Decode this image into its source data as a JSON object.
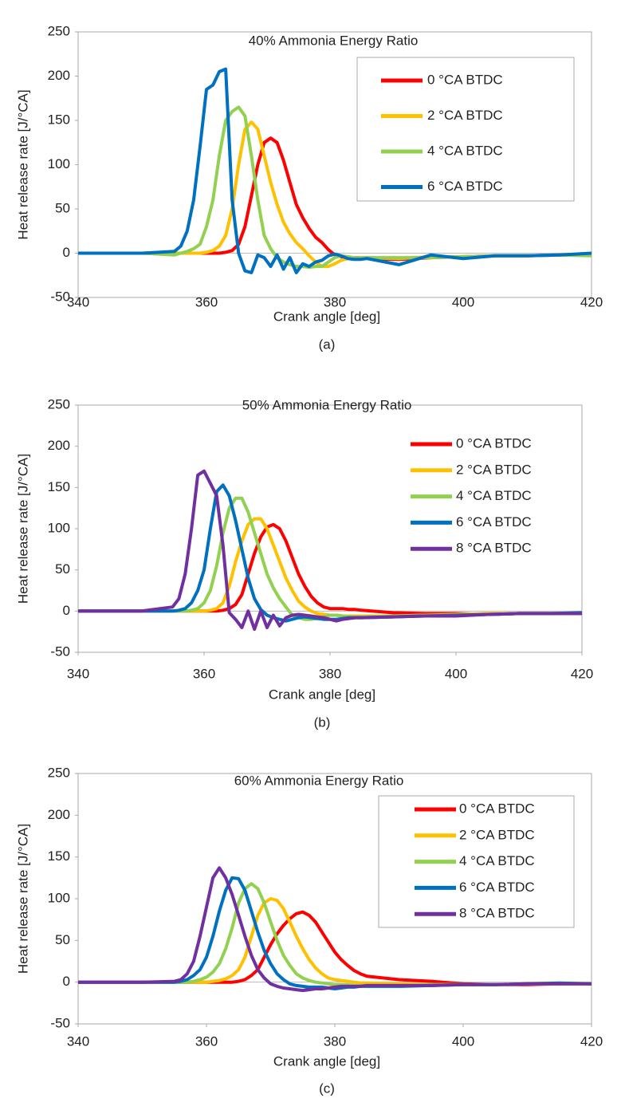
{
  "chart_data": [
    {
      "type": "line",
      "title": "40% Ammonia Energy Ratio",
      "xlabel": "Crank angle [deg]",
      "ylabel": "Heat release rate [J/°CA]",
      "caption": "(a)",
      "xlim": [
        340,
        420
      ],
      "xticks": [
        340,
        360,
        380,
        400,
        420
      ],
      "ylim": [
        -50,
        250
      ],
      "yticks": [
        -50,
        0,
        50,
        100,
        150,
        200,
        250
      ],
      "legend": "upper right",
      "legend_frame": true,
      "x": [
        340,
        345,
        350,
        355,
        356,
        357,
        358,
        359,
        360,
        361,
        362,
        363,
        364,
        365,
        366,
        367,
        368,
        369,
        370,
        371,
        372,
        373,
        374,
        375,
        376,
        377,
        378,
        379,
        380,
        381,
        382,
        383,
        384,
        385,
        390,
        395,
        400,
        405,
        410,
        415,
        420
      ],
      "series": [
        {
          "name": "0 °CA BTDC",
          "color": "#ff0000",
          "values": [
            0,
            0,
            0,
            0,
            0,
            0,
            0,
            0,
            0,
            0,
            0,
            1,
            3,
            10,
            30,
            65,
            100,
            125,
            130,
            125,
            105,
            80,
            55,
            40,
            28,
            18,
            12,
            4,
            -2,
            -4,
            -5,
            -5,
            -5,
            -6,
            -7,
            -5,
            -4,
            -3,
            -3,
            -2,
            -2
          ]
        },
        {
          "name": "2 °CA BTDC",
          "color": "#ffc000",
          "values": [
            0,
            0,
            0,
            0,
            0,
            0,
            0,
            0,
            1,
            3,
            8,
            20,
            50,
            100,
            140,
            148,
            140,
            110,
            80,
            55,
            35,
            22,
            12,
            5,
            -3,
            -10,
            -15,
            -15,
            -12,
            -8,
            -6,
            -6,
            -5,
            -5,
            -6,
            -4,
            -4,
            -3,
            -3,
            -2,
            -2
          ]
        },
        {
          "name": "4 °CA BTDC",
          "color": "#92d050",
          "values": [
            0,
            0,
            0,
            -2,
            0,
            2,
            5,
            10,
            30,
            60,
            110,
            150,
            160,
            165,
            155,
            110,
            60,
            20,
            5,
            -5,
            -10,
            -13,
            -15,
            -15,
            -16,
            -15,
            -15,
            -10,
            -5,
            -3,
            -4,
            -5,
            -5,
            -5,
            -5,
            -5,
            -4,
            -3,
            -3,
            -2,
            -3
          ]
        },
        {
          "name": "6 °CA BTDC",
          "color": "#0070c0",
          "values": [
            0,
            0,
            0,
            2,
            8,
            25,
            60,
            120,
            185,
            190,
            205,
            208,
            60,
            0,
            -20,
            -22,
            -2,
            -5,
            -15,
            -2,
            -18,
            -5,
            -22,
            -12,
            -15,
            -10,
            -8,
            -3,
            -1,
            -3,
            -6,
            -7,
            -7,
            -6,
            -13,
            -2,
            -6,
            -3,
            -3,
            -2,
            0
          ]
        }
      ]
    },
    {
      "type": "line",
      "title": "50% Ammonia Energy Ratio",
      "xlabel": "Crank angle [deg]",
      "ylabel": "Heat release rate [J/°CA]",
      "caption": "(b)",
      "xlim": [
        340,
        420
      ],
      "xticks": [
        340,
        360,
        380,
        400,
        420
      ],
      "ylim": [
        -50,
        250
      ],
      "yticks": [
        -50,
        0,
        50,
        100,
        150,
        200,
        250
      ],
      "legend": "upper right",
      "legend_frame": false,
      "x": [
        340,
        345,
        350,
        355,
        356,
        357,
        358,
        359,
        360,
        361,
        362,
        363,
        364,
        365,
        366,
        367,
        368,
        369,
        370,
        371,
        372,
        373,
        374,
        375,
        376,
        377,
        378,
        379,
        380,
        381,
        382,
        383,
        384,
        385,
        390,
        395,
        400,
        405,
        410,
        415,
        420
      ],
      "series": [
        {
          "name": "0 °CA BTDC",
          "color": "#ff0000",
          "values": [
            0,
            0,
            0,
            0,
            0,
            0,
            0,
            0,
            0,
            0,
            0,
            1,
            3,
            8,
            20,
            45,
            70,
            90,
            102,
            105,
            100,
            85,
            65,
            45,
            30,
            18,
            10,
            5,
            3,
            3,
            3,
            2,
            2,
            1,
            -2,
            -3,
            -3,
            -4,
            -3,
            -3,
            -3
          ]
        },
        {
          "name": "2 °CA BTDC",
          "color": "#ffc000",
          "values": [
            0,
            0,
            0,
            0,
            0,
            0,
            0,
            0,
            0,
            1,
            3,
            10,
            30,
            60,
            85,
            105,
            112,
            112,
            100,
            80,
            60,
            40,
            25,
            12,
            5,
            0,
            -3,
            -4,
            -5,
            -5,
            -6,
            -6,
            -6,
            -6,
            -6,
            -5,
            -4,
            -3,
            -3,
            -3,
            -3
          ]
        },
        {
          "name": "4 °CA BTDC",
          "color": "#92d050",
          "values": [
            0,
            0,
            0,
            0,
            0,
            0,
            1,
            3,
            10,
            25,
            55,
            95,
            125,
            137,
            137,
            120,
            95,
            70,
            45,
            28,
            15,
            5,
            -5,
            -8,
            -10,
            -10,
            -9,
            -7,
            -5,
            -5,
            -6,
            -7,
            -7,
            -7,
            -6,
            -5,
            -5,
            -4,
            -3,
            -3,
            -3
          ]
        },
        {
          "name": "6 °CA BTDC",
          "color": "#0070c0",
          "values": [
            0,
            0,
            0,
            0,
            1,
            3,
            10,
            25,
            50,
            100,
            145,
            153,
            140,
            110,
            75,
            40,
            15,
            2,
            -5,
            -8,
            -10,
            -12,
            -10,
            -8,
            -7,
            -8,
            -9,
            -10,
            -10,
            -10,
            -9,
            -8,
            -8,
            -8,
            -7,
            -6,
            -5,
            -4,
            -3,
            -3,
            -2
          ]
        },
        {
          "name": "8 °CA BTDC",
          "color": "#7030a0",
          "values": [
            0,
            0,
            0,
            5,
            15,
            45,
            100,
            165,
            170,
            155,
            140,
            80,
            -2,
            -10,
            -20,
            0,
            -22,
            0,
            -20,
            -5,
            -18,
            -8,
            -5,
            -4,
            -5,
            -6,
            -7,
            -8,
            -10,
            -12,
            -10,
            -9,
            -8,
            -8,
            -7,
            -6,
            -6,
            -4,
            -3,
            -3,
            -3
          ]
        }
      ]
    },
    {
      "type": "line",
      "title": "60% Ammonia Energy Ratio",
      "xlabel": "Crank angle [deg]",
      "ylabel": "Heat release rate [J/°CA]",
      "caption": "(c)",
      "xlim": [
        340,
        420
      ],
      "xticks": [
        340,
        360,
        380,
        400,
        420
      ],
      "ylim": [
        -50,
        250
      ],
      "yticks": [
        -50,
        0,
        50,
        100,
        150,
        200,
        250
      ],
      "legend": "upper right",
      "legend_frame": true,
      "x": [
        340,
        345,
        350,
        355,
        356,
        357,
        358,
        359,
        360,
        361,
        362,
        363,
        364,
        365,
        366,
        367,
        368,
        369,
        370,
        371,
        372,
        373,
        374,
        375,
        376,
        377,
        378,
        379,
        380,
        381,
        382,
        383,
        384,
        385,
        390,
        395,
        400,
        405,
        410,
        415,
        420
      ],
      "series": [
        {
          "name": "0 °CA BTDC",
          "color": "#ff0000",
          "values": [
            0,
            0,
            0,
            0,
            0,
            0,
            0,
            0,
            0,
            0,
            0,
            0,
            0,
            1,
            3,
            8,
            15,
            30,
            45,
            58,
            68,
            76,
            82,
            84,
            80,
            72,
            60,
            48,
            36,
            27,
            20,
            14,
            10,
            7,
            3,
            1,
            -2,
            -3,
            -3,
            -2,
            -2
          ]
        },
        {
          "name": "2 °CA BTDC",
          "color": "#ffc000",
          "values": [
            0,
            0,
            0,
            0,
            0,
            0,
            0,
            0,
            0,
            1,
            2,
            4,
            8,
            15,
            30,
            55,
            80,
            95,
            100,
            98,
            88,
            72,
            55,
            40,
            27,
            17,
            10,
            5,
            3,
            2,
            1,
            0,
            -1,
            -1,
            -2,
            -3,
            -3,
            -3,
            -2,
            -2,
            -2
          ]
        },
        {
          "name": "4 °CA BTDC",
          "color": "#92d050",
          "values": [
            0,
            0,
            0,
            0,
            0,
            0,
            1,
            3,
            6,
            12,
            22,
            40,
            65,
            95,
            112,
            118,
            112,
            95,
            72,
            50,
            32,
            20,
            10,
            5,
            2,
            0,
            -1,
            -2,
            -3,
            -3,
            -3,
            -4,
            -4,
            -4,
            -4,
            -3,
            -3,
            -3,
            -2,
            -2,
            -2
          ]
        },
        {
          "name": "6 °CA BTDC",
          "color": "#0070c0",
          "values": [
            0,
            0,
            0,
            0,
            1,
            3,
            8,
            15,
            30,
            55,
            85,
            110,
            125,
            124,
            110,
            85,
            60,
            38,
            22,
            10,
            3,
            -2,
            -4,
            -5,
            -6,
            -6,
            -6,
            -7,
            -8,
            -7,
            -6,
            -6,
            -5,
            -5,
            -5,
            -4,
            -3,
            -3,
            -2,
            -1,
            -2
          ]
        },
        {
          "name": "8 °CA BTDC",
          "color": "#7030a0",
          "values": [
            0,
            0,
            0,
            1,
            3,
            10,
            25,
            55,
            90,
            125,
            137,
            125,
            105,
            80,
            55,
            32,
            15,
            5,
            -2,
            -5,
            -7,
            -8,
            -9,
            -10,
            -9,
            -8,
            -8,
            -7,
            -6,
            -5,
            -5,
            -5,
            -5,
            -4,
            -4,
            -4,
            -3,
            -3,
            -2,
            -2,
            -2
          ]
        }
      ]
    }
  ]
}
